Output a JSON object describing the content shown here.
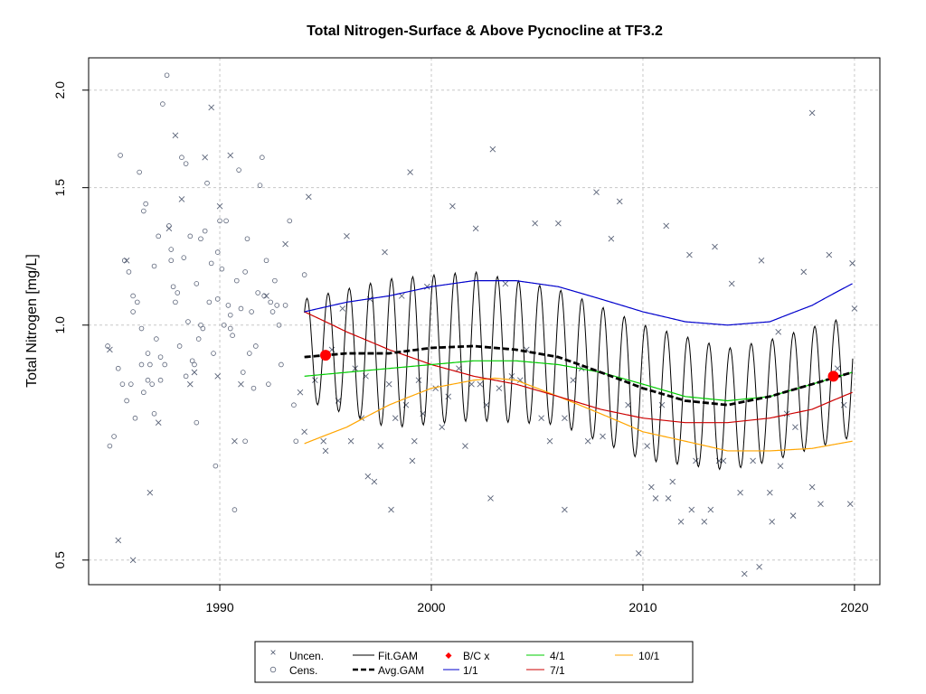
{
  "chart_data": {
    "type": "scatter",
    "title": "Total Nitrogen-Surface & Above Pycnocline at TF3.2",
    "xlabel": "",
    "ylabel": "Total Nitrogen [mg/L]",
    "y_scale": "log",
    "xlim": [
      1983.8,
      2021.2
    ],
    "ylim": [
      0.465,
      2.2
    ],
    "x_ticks": [
      "1990",
      "2000",
      "2010",
      "2020"
    ],
    "y_ticks": [
      "0.5",
      "1.0",
      "1.5",
      "2.0"
    ],
    "grid": true,
    "legend_position": "bottom",
    "legend": [
      "Uncen.",
      "Cens.",
      "Fit.GAM",
      "Avg.GAM",
      "B/C x",
      "1/1",
      "4/1",
      "7/1",
      "10/1"
    ],
    "colors": {
      "points": "#5a6378",
      "fit": "#000000",
      "avg": "#000000",
      "bc": "#ff0000",
      "d1_1": "#0000cc",
      "d4_1": "#00cc00",
      "d7_1": "#cc0000",
      "d10_1": "#ffa500"
    },
    "cens_points": [
      [
        1984.7,
        0.94
      ],
      [
        1984.8,
        0.7
      ],
      [
        1985.0,
        0.72
      ],
      [
        1985.2,
        0.88
      ],
      [
        1985.3,
        1.65
      ],
      [
        1985.4,
        0.84
      ],
      [
        1985.5,
        1.21
      ],
      [
        1985.6,
        0.8
      ],
      [
        1985.7,
        1.17
      ],
      [
        1985.8,
        0.84
      ],
      [
        1985.9,
        1.09
      ],
      [
        1986.0,
        0.76
      ],
      [
        1986.1,
        1.07
      ],
      [
        1986.2,
        1.57
      ],
      [
        1986.3,
        0.99
      ],
      [
        1986.4,
        1.4
      ],
      [
        1986.5,
        1.43
      ],
      [
        1986.6,
        0.92
      ],
      [
        1986.7,
        0.89
      ],
      [
        1986.8,
        0.84
      ],
      [
        1986.9,
        1.19
      ],
      [
        1987.0,
        0.96
      ],
      [
        1987.1,
        1.3
      ],
      [
        1987.2,
        0.85
      ],
      [
        1987.3,
        1.92
      ],
      [
        1987.4,
        0.89
      ],
      [
        1987.5,
        2.09
      ],
      [
        1987.6,
        1.34
      ],
      [
        1987.7,
        1.25
      ],
      [
        1987.8,
        1.12
      ],
      [
        1987.9,
        1.07
      ],
      [
        1988.0,
        1.1
      ],
      [
        1988.1,
        0.94
      ],
      [
        1988.2,
        1.64
      ],
      [
        1988.3,
        1.22
      ],
      [
        1988.4,
        1.61
      ],
      [
        1988.5,
        1.01
      ],
      [
        1988.6,
        1.3
      ],
      [
        1988.7,
        0.9
      ],
      [
        1988.8,
        0.89
      ],
      [
        1988.9,
        1.13
      ],
      [
        1989.0,
        0.96
      ],
      [
        1989.1,
        1.29
      ],
      [
        1989.2,
        0.99
      ],
      [
        1989.3,
        1.32
      ],
      [
        1989.4,
        1.52
      ],
      [
        1989.5,
        1.07
      ],
      [
        1989.6,
        1.2
      ],
      [
        1989.7,
        0.92
      ],
      [
        1989.8,
        0.66
      ],
      [
        1989.9,
        1.24
      ],
      [
        1990.0,
        1.36
      ],
      [
        1990.1,
        1.18
      ],
      [
        1990.2,
        1.0
      ],
      [
        1990.3,
        1.36
      ],
      [
        1990.4,
        1.06
      ],
      [
        1990.5,
        0.99
      ],
      [
        1990.6,
        0.97
      ],
      [
        1990.7,
        0.58
      ],
      [
        1990.8,
        1.14
      ],
      [
        1990.9,
        1.58
      ],
      [
        1991.0,
        1.05
      ],
      [
        1991.1,
        0.87
      ],
      [
        1991.2,
        1.17
      ],
      [
        1991.3,
        1.29
      ],
      [
        1991.4,
        0.92
      ],
      [
        1991.5,
        1.04
      ],
      [
        1991.6,
        0.83
      ],
      [
        1991.7,
        0.94
      ],
      [
        1991.8,
        1.1
      ],
      [
        1991.9,
        1.51
      ],
      [
        1992.0,
        1.64
      ],
      [
        1992.1,
        1.09
      ],
      [
        1992.2,
        1.21
      ],
      [
        1992.3,
        0.84
      ],
      [
        1992.4,
        1.07
      ],
      [
        1992.5,
        1.04
      ],
      [
        1992.6,
        1.14
      ],
      [
        1992.7,
        1.06
      ],
      [
        1992.9,
        0.89
      ],
      [
        1993.1,
        1.06
      ],
      [
        1993.3,
        1.36
      ],
      [
        1993.5,
        0.79
      ],
      [
        1994.0,
        1.16
      ],
      [
        1986.6,
        0.85
      ],
      [
        1986.9,
        0.77
      ],
      [
        1987.2,
        0.91
      ],
      [
        1988.4,
        0.86
      ],
      [
        1989.1,
        1.0
      ],
      [
        1990.5,
        1.03
      ],
      [
        1986.3,
        0.89
      ],
      [
        1985.9,
        1.04
      ],
      [
        1988.9,
        0.75
      ],
      [
        1987.7,
        1.21
      ],
      [
        1986.4,
        0.82
      ],
      [
        1992.8,
        1.0
      ],
      [
        1989.9,
        1.08
      ],
      [
        1991.2,
        0.71
      ],
      [
        1993.6,
        0.71
      ]
    ],
    "uncen_points": [
      [
        1984.8,
        0.93
      ],
      [
        1985.2,
        0.53
      ],
      [
        1985.6,
        1.21
      ],
      [
        1985.9,
        0.5
      ],
      [
        1986.7,
        0.61
      ],
      [
        1987.1,
        0.75
      ],
      [
        1987.6,
        1.33
      ],
      [
        1987.9,
        1.75
      ],
      [
        1988.2,
        1.45
      ],
      [
        1988.6,
        0.84
      ],
      [
        1988.8,
        0.87
      ],
      [
        1989.3,
        1.64
      ],
      [
        1989.6,
        1.9
      ],
      [
        1989.9,
        0.86
      ],
      [
        1990.0,
        1.42
      ],
      [
        1990.5,
        1.65
      ],
      [
        1990.7,
        0.71
      ],
      [
        1991.0,
        0.84
      ],
      [
        1992.2,
        1.09
      ],
      [
        1993.1,
        1.27
      ],
      [
        1993.8,
        0.82
      ],
      [
        1994.2,
        1.46
      ],
      [
        1994.0,
        0.73
      ],
      [
        1994.5,
        0.85
      ],
      [
        1994.9,
        0.71
      ],
      [
        1995.0,
        0.69
      ],
      [
        1995.3,
        0.93
      ],
      [
        1995.6,
        0.8
      ],
      [
        1995.8,
        1.05
      ],
      [
        1996.0,
        1.3
      ],
      [
        1996.2,
        0.71
      ],
      [
        1996.4,
        0.88
      ],
      [
        1996.7,
        0.76
      ],
      [
        1996.9,
        0.86
      ],
      [
        1997.1,
        1.08
      ],
      [
        1997.3,
        0.63
      ],
      [
        1997.6,
        0.7
      ],
      [
        1997.8,
        1.24
      ],
      [
        1998.0,
        0.84
      ],
      [
        1998.3,
        0.76
      ],
      [
        1998.6,
        1.09
      ],
      [
        1998.8,
        0.79
      ],
      [
        1999.0,
        1.57
      ],
      [
        1999.2,
        0.71
      ],
      [
        1999.4,
        0.85
      ],
      [
        1999.6,
        0.77
      ],
      [
        1999.8,
        1.12
      ],
      [
        2000.2,
        0.83
      ],
      [
        2000.5,
        0.74
      ],
      [
        2000.8,
        0.81
      ],
      [
        2001.0,
        1.42
      ],
      [
        2001.3,
        0.88
      ],
      [
        2001.6,
        0.7
      ],
      [
        2001.9,
        0.84
      ],
      [
        2002.1,
        1.33
      ],
      [
        2002.3,
        0.84
      ],
      [
        2002.6,
        0.79
      ],
      [
        2002.9,
        1.68
      ],
      [
        2003.2,
        0.83
      ],
      [
        2003.5,
        1.13
      ],
      [
        2003.8,
        0.86
      ],
      [
        2004.2,
        0.85
      ],
      [
        2004.5,
        0.93
      ],
      [
        2004.9,
        1.35
      ],
      [
        2005.2,
        0.76
      ],
      [
        2005.6,
        0.71
      ],
      [
        2006.0,
        1.35
      ],
      [
        2006.3,
        0.76
      ],
      [
        2006.7,
        0.85
      ],
      [
        2007.1,
        0.88
      ],
      [
        2007.4,
        0.71
      ],
      [
        2007.8,
        1.48
      ],
      [
        2008.1,
        0.72
      ],
      [
        2008.5,
        1.29
      ],
      [
        2008.9,
        1.44
      ],
      [
        2009.3,
        0.79
      ],
      [
        2009.8,
        0.51
      ],
      [
        2010.2,
        0.7
      ],
      [
        2010.6,
        0.6
      ],
      [
        2010.9,
        0.79
      ],
      [
        2011.1,
        1.34
      ],
      [
        2011.4,
        0.63
      ],
      [
        2011.8,
        0.56
      ],
      [
        2012.2,
        1.23
      ],
      [
        2012.5,
        0.67
      ],
      [
        2012.9,
        0.56
      ],
      [
        2013.4,
        1.26
      ],
      [
        2013.8,
        0.67
      ],
      [
        2014.2,
        1.13
      ],
      [
        2014.6,
        0.61
      ],
      [
        2014.8,
        0.48
      ],
      [
        2015.2,
        0.67
      ],
      [
        2015.6,
        1.21
      ],
      [
        2016.0,
        0.61
      ],
      [
        2016.4,
        0.98
      ],
      [
        2016.8,
        0.77
      ],
      [
        2017.2,
        0.74
      ],
      [
        2017.6,
        1.17
      ],
      [
        2018.0,
        1.87
      ],
      [
        2018.4,
        0.59
      ],
      [
        2018.8,
        1.23
      ],
      [
        2019.2,
        0.88
      ],
      [
        2019.5,
        0.79
      ],
      [
        2019.8,
        0.59
      ],
      [
        2019.9,
        1.2
      ],
      [
        2020.0,
        1.05
      ],
      [
        2015.5,
        0.49
      ],
      [
        2016.1,
        0.56
      ],
      [
        2017.1,
        0.57
      ],
      [
        2018.0,
        0.62
      ],
      [
        2013.2,
        0.58
      ],
      [
        2012.3,
        0.58
      ],
      [
        2011.2,
        0.6
      ],
      [
        2006.3,
        0.58
      ],
      [
        2002.8,
        0.6
      ],
      [
        1999.1,
        0.67
      ],
      [
        1998.1,
        0.58
      ],
      [
        1997.0,
        0.64
      ],
      [
        2013.6,
        0.67
      ],
      [
        2016.5,
        0.66
      ],
      [
        2010.4,
        0.62
      ]
    ],
    "fit_gam": {
      "x_start": 1994.0,
      "x_end": 2019.9,
      "points_per_year": 24,
      "min_month_phase": 0.62,
      "mean": [
        [
          1994,
          0.93
        ],
        [
          1998,
          0.92
        ],
        [
          2002,
          0.94
        ],
        [
          2006,
          0.91
        ],
        [
          2010,
          0.82
        ],
        [
          2014,
          0.78
        ],
        [
          2016,
          0.8
        ],
        [
          2019.9,
          0.86
        ]
      ],
      "amplitude": [
        [
          1994,
          0.15
        ],
        [
          1998,
          0.22
        ],
        [
          2002,
          0.22
        ],
        [
          2006,
          0.2
        ],
        [
          2010,
          0.2
        ],
        [
          2014,
          0.18
        ],
        [
          2019.9,
          0.18
        ]
      ]
    },
    "avg_gam": [
      [
        1994.0,
        0.91
      ],
      [
        1996.0,
        0.92
      ],
      [
        1998.0,
        0.92
      ],
      [
        2000.0,
        0.935
      ],
      [
        2002.0,
        0.94
      ],
      [
        2004.0,
        0.93
      ],
      [
        2006.0,
        0.91
      ],
      [
        2008.0,
        0.87
      ],
      [
        2010.0,
        0.83
      ],
      [
        2012.0,
        0.8
      ],
      [
        2014.0,
        0.79
      ],
      [
        2016.0,
        0.81
      ],
      [
        2018.0,
        0.84
      ],
      [
        2019.9,
        0.87
      ]
    ],
    "bc_points": [
      [
        1995.0,
        0.915
      ],
      [
        2019.0,
        0.86
      ]
    ],
    "day_1_1": [
      [
        1994.0,
        1.04
      ],
      [
        1996.0,
        1.07
      ],
      [
        1998.0,
        1.09
      ],
      [
        2000.0,
        1.12
      ],
      [
        2002.0,
        1.14
      ],
      [
        2004.0,
        1.14
      ],
      [
        2006.0,
        1.12
      ],
      [
        2008.0,
        1.08
      ],
      [
        2010.0,
        1.04
      ],
      [
        2012.0,
        1.01
      ],
      [
        2014.0,
        1.0
      ],
      [
        2016.0,
        1.01
      ],
      [
        2018.0,
        1.06
      ],
      [
        2019.9,
        1.13
      ]
    ],
    "day_4_1": [
      [
        1994.0,
        0.86
      ],
      [
        1996.0,
        0.87
      ],
      [
        1998.0,
        0.88
      ],
      [
        2000.0,
        0.89
      ],
      [
        2002.0,
        0.9
      ],
      [
        2004.0,
        0.9
      ],
      [
        2006.0,
        0.89
      ],
      [
        2008.0,
        0.87
      ],
      [
        2010.0,
        0.84
      ],
      [
        2012.0,
        0.81
      ],
      [
        2014.0,
        0.8
      ],
      [
        2016.0,
        0.81
      ],
      [
        2018.0,
        0.84
      ],
      [
        2019.9,
        0.87
      ]
    ],
    "day_7_1": [
      [
        1994.0,
        1.04
      ],
      [
        1996.0,
        0.98
      ],
      [
        1998.0,
        0.93
      ],
      [
        2000.0,
        0.89
      ],
      [
        2002.0,
        0.86
      ],
      [
        2004.0,
        0.84
      ],
      [
        2006.0,
        0.81
      ],
      [
        2008.0,
        0.78
      ],
      [
        2010.0,
        0.76
      ],
      [
        2012.0,
        0.75
      ],
      [
        2014.0,
        0.75
      ],
      [
        2016.0,
        0.76
      ],
      [
        2018.0,
        0.78
      ],
      [
        2019.9,
        0.82
      ]
    ],
    "day_10_1": [
      [
        1994.0,
        0.705
      ],
      [
        1996.0,
        0.74
      ],
      [
        1998.0,
        0.79
      ],
      [
        2000.0,
        0.83
      ],
      [
        2002.0,
        0.85
      ],
      [
        2003.0,
        0.855
      ],
      [
        2004.0,
        0.85
      ],
      [
        2006.0,
        0.81
      ],
      [
        2008.0,
        0.77
      ],
      [
        2010.0,
        0.73
      ],
      [
        2012.0,
        0.71
      ],
      [
        2014.0,
        0.69
      ],
      [
        2016.0,
        0.69
      ],
      [
        2018.0,
        0.695
      ],
      [
        2019.9,
        0.71
      ]
    ]
  }
}
